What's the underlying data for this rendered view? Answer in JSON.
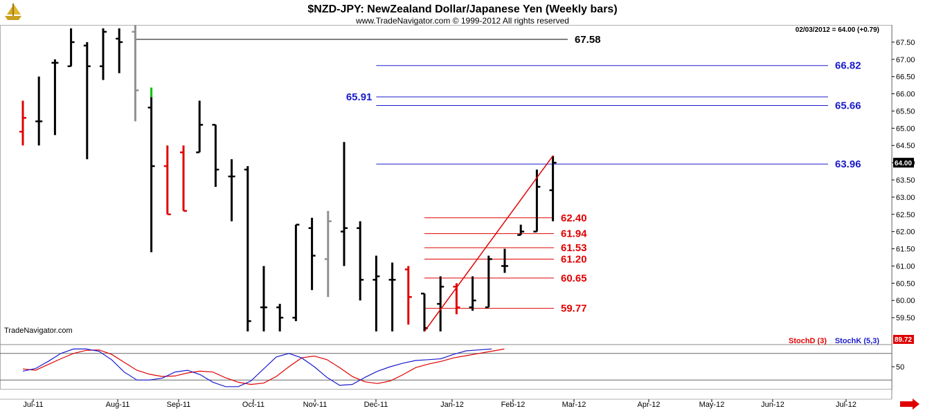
{
  "header": {
    "title": "$NZD-JPY:  NewZealand Dollar/Japanese Yen  (Weekly bars)",
    "copyright": "www.TradeNavigator.com © 1999-2012 All rights reserved",
    "last_quote": "02/03/2012 = 64.00 (+0.79)",
    "watermark": "TradeNavigator.com"
  },
  "logo": {
    "icon": "trade-navigator-ship-logo-icon"
  },
  "colors": {
    "up_bar": "#000000",
    "down_bar": "#e00000",
    "neutral_bar": "#909090",
    "signal_bar": "#00c000",
    "blue_level": "#1a1acc",
    "red_level": "#e00000",
    "stoch_d": "#e00000",
    "stoch_k": "#1a1acc",
    "price_tag_bg": "#000000"
  },
  "chart_data": [
    {
      "type": "ohlc",
      "title": "$NZD-JPY:  NewZealand Dollar/Japanese Yen  (Weekly bars)",
      "x_months": [
        "Jul-11",
        "Aug-11",
        "Sep-11",
        "Oct-11",
        "Nov-11",
        "Dec-11",
        "Jan-12",
        "Feb-12",
        "Mar-12",
        "Apr-12",
        "May-12",
        "Jun-12",
        "Jul-12"
      ],
      "y_ticks": [
        "67.50",
        "67.00",
        "66.50",
        "66.00",
        "65.50",
        "65.00",
        "64.50",
        "64.00",
        "63.50",
        "63.00",
        "62.50",
        "62.00",
        "61.50",
        "61.00",
        "60.50",
        "60.00",
        "59.50"
      ],
      "ylim": [
        59.0,
        68.0
      ],
      "last_price_label": "64.00",
      "bars": [
        {
          "week": 0,
          "o": 64.9,
          "h": 65.8,
          "l": 64.5,
          "c": 65.3,
          "color": "red"
        },
        {
          "week": 1,
          "o": 65.2,
          "h": 66.5,
          "l": 64.5,
          "c": 65.2,
          "color": "black"
        },
        {
          "week": 2,
          "o": 66.9,
          "h": 67.0,
          "l": 64.8,
          "c": 66.9,
          "color": "black"
        },
        {
          "week": 3,
          "o": 66.8,
          "h": 67.9,
          "l": 66.8,
          "c": 67.5,
          "color": "black"
        },
        {
          "week": 4,
          "o": 67.4,
          "h": 67.5,
          "l": 64.1,
          "c": 66.8,
          "color": "black"
        },
        {
          "week": 5,
          "o": 66.8,
          "h": 67.9,
          "l": 66.4,
          "c": 67.8,
          "color": "black"
        },
        {
          "week": 6,
          "o": 67.6,
          "h": 67.9,
          "l": 66.6,
          "c": 67.5,
          "color": "black"
        },
        {
          "week": 7,
          "o": 67.8,
          "h": 68.0,
          "l": 65.2,
          "c": 66.1,
          "color": "gray"
        },
        {
          "week": 8,
          "o": 65.6,
          "h": 65.9,
          "l": 61.4,
          "c": 63.9,
          "color": "black"
        },
        {
          "week": 9,
          "o": 63.9,
          "h": 64.5,
          "l": 62.5,
          "c": 62.5,
          "color": "red"
        },
        {
          "week": 10,
          "o": 64.3,
          "h": 64.5,
          "l": 62.6,
          "c": 62.6,
          "color": "red"
        },
        {
          "week": 11,
          "o": 64.3,
          "h": 65.8,
          "l": 64.3,
          "c": 65.1,
          "color": "black"
        },
        {
          "week": 12,
          "o": 65.1,
          "h": 65.1,
          "l": 63.3,
          "c": 63.8,
          "color": "black"
        },
        {
          "week": 13,
          "o": 63.6,
          "h": 64.1,
          "l": 62.3,
          "c": 63.6,
          "color": "black"
        },
        {
          "week": 14,
          "o": 63.8,
          "h": 63.9,
          "l": 59.1,
          "c": 59.4,
          "color": "black"
        },
        {
          "week": 15,
          "o": 59.8,
          "h": 61.0,
          "l": 59.1,
          "c": 59.8,
          "color": "black"
        },
        {
          "week": 16,
          "o": 59.8,
          "h": 59.9,
          "l": 59.1,
          "c": 59.5,
          "color": "black"
        },
        {
          "week": 17,
          "o": 59.5,
          "h": 62.2,
          "l": 59.4,
          "c": 62.2,
          "color": "black"
        },
        {
          "week": 18,
          "o": 62.1,
          "h": 62.4,
          "l": 60.3,
          "c": 61.3,
          "color": "black"
        },
        {
          "week": 19,
          "o": 61.2,
          "h": 62.6,
          "l": 60.1,
          "c": 62.3,
          "color": "gray"
        },
        {
          "week": 20,
          "o": 62.0,
          "h": 64.6,
          "l": 61.0,
          "c": 62.1,
          "color": "black"
        },
        {
          "week": 21,
          "o": 62.1,
          "h": 62.3,
          "l": 60.0,
          "c": 60.6,
          "color": "black"
        },
        {
          "week": 22,
          "o": 60.6,
          "h": 61.3,
          "l": 59.1,
          "c": 60.7,
          "color": "black"
        },
        {
          "week": 23,
          "o": 60.6,
          "h": 61.1,
          "l": 59.1,
          "c": 60.6,
          "color": "black"
        },
        {
          "week": 24,
          "o": 60.9,
          "h": 61.0,
          "l": 59.3,
          "c": 60.1,
          "color": "red"
        },
        {
          "week": 25,
          "o": 60.2,
          "h": 60.2,
          "l": 59.1,
          "c": 59.2,
          "color": "black"
        },
        {
          "week": 26,
          "o": 59.9,
          "h": 60.7,
          "l": 59.1,
          "c": 60.4,
          "color": "black"
        },
        {
          "week": 27,
          "o": 60.4,
          "h": 60.5,
          "l": 59.6,
          "c": 59.8,
          "color": "red"
        },
        {
          "week": 28,
          "o": 59.8,
          "h": 60.7,
          "l": 59.7,
          "c": 60.0,
          "color": "black"
        },
        {
          "week": 29,
          "o": 59.8,
          "h": 61.3,
          "l": 59.8,
          "c": 61.2,
          "color": "black"
        },
        {
          "week": 30,
          "o": 61.0,
          "h": 61.5,
          "l": 60.8,
          "c": 61.0,
          "color": "black"
        },
        {
          "week": 31,
          "o": 61.9,
          "h": 62.2,
          "l": 61.9,
          "c": 62.0,
          "color": "black"
        },
        {
          "week": 32,
          "o": 62.0,
          "h": 63.8,
          "l": 62.0,
          "c": 63.3,
          "color": "black"
        },
        {
          "week": 33,
          "o": 63.2,
          "h": 64.2,
          "l": 62.3,
          "c": 64.0,
          "color": "black"
        }
      ],
      "trendline": {
        "from": {
          "week": 25,
          "price": 59.1
        },
        "to": {
          "week": 33,
          "price": 64.2
        },
        "color": "red"
      },
      "levels": [
        {
          "label": "67.58",
          "value": 67.58,
          "color": "black",
          "from_week": 7,
          "label_side": "right"
        },
        {
          "label": "66.82",
          "value": 66.82,
          "color": "blue",
          "from_week": 22,
          "label_side": "right"
        },
        {
          "label": "65.91",
          "value": 65.91,
          "color": "blue",
          "from_week": 22,
          "label_side": "left"
        },
        {
          "label": "65.66",
          "value": 65.66,
          "color": "blue",
          "from_week": 22,
          "label_side": "right"
        },
        {
          "label": "63.96",
          "value": 63.96,
          "color": "blue",
          "from_week": 22,
          "label_side": "right"
        },
        {
          "label": "62.40",
          "value": 62.4,
          "color": "red",
          "from_week": 25,
          "label_side": "right"
        },
        {
          "label": "61.94",
          "value": 61.94,
          "color": "red",
          "from_week": 25,
          "label_side": "right"
        },
        {
          "label": "61.53",
          "value": 61.53,
          "color": "red",
          "from_week": 25,
          "label_side": "right"
        },
        {
          "label": "61.20",
          "value": 61.2,
          "color": "red",
          "from_week": 25,
          "label_side": "right"
        },
        {
          "label": "60.65",
          "value": 60.65,
          "color": "red",
          "from_week": 25,
          "label_side": "right"
        },
        {
          "label": "59.77",
          "value": 59.77,
          "color": "red",
          "from_week": 25,
          "label_side": "right"
        }
      ]
    },
    {
      "type": "line",
      "legend": [
        "StochD (3)",
        "StochK (5,3)"
      ],
      "y_tick": "50",
      "last_value_label": "89.72",
      "ylim": [
        0,
        100
      ],
      "series": [
        {
          "name": "StochD (3)",
          "color": "red",
          "values": [
            45,
            42,
            55,
            68,
            80,
            87,
            88,
            78,
            60,
            42,
            33,
            28,
            29,
            36,
            40,
            38,
            25,
            15,
            10,
            13,
            28,
            50,
            70,
            74,
            66,
            48,
            28,
            16,
            12,
            18,
            32,
            48,
            56,
            62,
            70,
            75,
            80,
            85,
            90
          ]
        },
        {
          "name": "StochK (5,3)",
          "color": "blue",
          "values": [
            40,
            46,
            62,
            80,
            90,
            90,
            85,
            66,
            38,
            20,
            20,
            24,
            38,
            42,
            32,
            15,
            5,
            5,
            18,
            45,
            72,
            80,
            70,
            50,
            26,
            8,
            10,
            26,
            40,
            50,
            58,
            64,
            66,
            68,
            78,
            86,
            88,
            90
          ]
        }
      ]
    }
  ]
}
